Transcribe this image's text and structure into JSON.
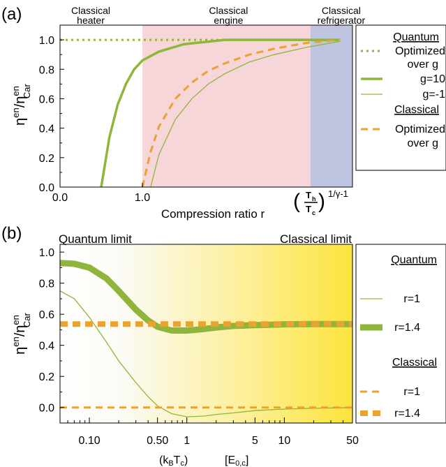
{
  "chart_data": [
    {
      "panel_label": "(a)",
      "type": "line",
      "xlabel": "Compression ratio r",
      "ylabel": {
        "base": "η",
        "sup": "en",
        "mid": "/η",
        "sup2": "en",
        "sub2": "Car"
      },
      "ylim": [
        0.0,
        1.1
      ],
      "yticks": [
        "0.0",
        "0.2",
        "0.4",
        "0.6",
        "0.8",
        "1.0"
      ],
      "xticks": [
        "0.0",
        "1.0"
      ],
      "x_end_label": {
        "frac_num": "T",
        "frac_num_sub": "h",
        "frac_den": "T",
        "frac_den_sub": "c",
        "exponent": "1/γ-1"
      },
      "regions": [
        {
          "label_line1": "Classical",
          "label_line2": "heater",
          "x_range": [
            0.0,
            1.0
          ],
          "color": "#ffffff"
        },
        {
          "label_line1": "Classical",
          "label_line2": "engine",
          "x_range": [
            1.0,
            3.04
          ],
          "color": "#f7d6d9"
        },
        {
          "label_line1": "Classical",
          "label_line2": "refrigerator",
          "x_range": [
            3.04,
            3.55
          ],
          "color": "#bfc5e0"
        }
      ],
      "series": [
        {
          "name": "Optimized over g",
          "group": "Quantum",
          "style": "dotted",
          "color": "#8fb53a",
          "x": [
            0.0,
            3.4
          ],
          "y": [
            1.0,
            1.0
          ]
        },
        {
          "name": "g=10",
          "group": "Quantum",
          "style": "thick",
          "color": "#8fb53a",
          "x": [
            0.5,
            0.6,
            0.7,
            0.8,
            0.9,
            1.0,
            1.2,
            1.5,
            2.0,
            3.4
          ],
          "y": [
            0.0,
            0.34,
            0.56,
            0.7,
            0.8,
            0.86,
            0.92,
            0.97,
            1.0,
            1.0
          ]
        },
        {
          "name": "g=-1",
          "group": "Quantum",
          "style": "thin",
          "color": "#8fb53a",
          "x": [
            1.1,
            1.2,
            1.4,
            1.6,
            1.8,
            2.0,
            2.3,
            2.6,
            3.0,
            3.4
          ],
          "y": [
            0.0,
            0.22,
            0.46,
            0.6,
            0.7,
            0.77,
            0.85,
            0.9,
            0.95,
            0.99
          ]
        },
        {
          "name": "Optimized over g",
          "group": "Classical",
          "style": "dashed",
          "color": "#e8a330",
          "x": [
            1.0,
            1.1,
            1.2,
            1.4,
            1.6,
            1.8,
            2.0,
            2.3,
            2.6,
            3.0,
            3.4
          ],
          "y": [
            0.0,
            0.24,
            0.41,
            0.6,
            0.71,
            0.79,
            0.84,
            0.9,
            0.94,
            0.98,
            1.0
          ]
        }
      ],
      "legend": {
        "placement": "right",
        "entries": [
          {
            "type": "header",
            "text": "Quantum"
          },
          {
            "type": "entry",
            "style": "dotted",
            "color": "#8fb53a",
            "line1": "Optimized",
            "line2": "over g"
          },
          {
            "type": "entry",
            "style": "thick",
            "color": "#8fb53a",
            "line1": "g=10"
          },
          {
            "type": "entry",
            "style": "thin",
            "color": "#8fb53a",
            "line1": "g=-1"
          },
          {
            "type": "header",
            "text": "Classical"
          },
          {
            "type": "entry",
            "style": "dashed",
            "color": "#e8a330",
            "line1": "Optimized",
            "line2": "over g"
          }
        ]
      }
    },
    {
      "panel_label": "(b)",
      "type": "line",
      "xscale": "log",
      "xlabel_parts": {
        "left": "(k",
        "sub": "B",
        "mid": "T",
        "sub2": "c",
        "right": ")",
        "unit": "[E",
        "unit_sub": "0,c",
        "unit_right": "]"
      },
      "ylabel": {
        "base": "η",
        "sup": "en",
        "mid": "/η",
        "sup2": "en",
        "sub2": "Car"
      },
      "ylim": [
        -0.1,
        1.05
      ],
      "xlim": [
        0.05,
        50
      ],
      "yticks": [
        "0.0",
        "0.2",
        "0.4",
        "0.6",
        "0.8",
        "1.0"
      ],
      "xticks": [
        "0.10",
        "0.50",
        "1",
        "5",
        "10",
        "50"
      ],
      "annotations": [
        "Quantum limit",
        "Classical limit"
      ],
      "background": "gradient white to yellow",
      "series": [
        {
          "name": "r=1",
          "group": "Quantum",
          "style": "thin",
          "color": "#8fb53a",
          "x": [
            0.05,
            0.07,
            0.1,
            0.15,
            0.2,
            0.3,
            0.4,
            0.5,
            0.7,
            1,
            1.5,
            2,
            3,
            5,
            10,
            20,
            50
          ],
          "y": [
            0.75,
            0.7,
            0.58,
            0.42,
            0.3,
            0.16,
            0.07,
            0.01,
            -0.04,
            -0.06,
            -0.055,
            -0.045,
            -0.035,
            -0.02,
            -0.01,
            -0.005,
            0.0
          ]
        },
        {
          "name": "r=1.4",
          "group": "Quantum",
          "style": "thick",
          "color": "#8fb53a",
          "x": [
            0.05,
            0.07,
            0.1,
            0.15,
            0.2,
            0.3,
            0.4,
            0.5,
            0.7,
            1,
            1.5,
            2,
            3,
            5,
            10,
            20,
            50
          ],
          "y": [
            0.93,
            0.925,
            0.9,
            0.83,
            0.75,
            0.63,
            0.56,
            0.52,
            0.495,
            0.495,
            0.505,
            0.515,
            0.525,
            0.53,
            0.535,
            0.537,
            0.537
          ]
        },
        {
          "name": "r=1",
          "group": "Classical",
          "style": "dashed",
          "color": "#e8a330",
          "x": [
            0.05,
            50
          ],
          "y": [
            0.0,
            0.0
          ]
        },
        {
          "name": "r=1.4",
          "group": "Classical",
          "style": "thick-dashed",
          "color": "#e8a330",
          "x": [
            0.05,
            50
          ],
          "y": [
            0.537,
            0.537
          ]
        }
      ],
      "legend": {
        "placement": "right",
        "entries": [
          {
            "type": "header",
            "text": "Quantum"
          },
          {
            "type": "entry",
            "style": "thin",
            "color": "#8fb53a",
            "line1": "r=1"
          },
          {
            "type": "entry",
            "style": "thick",
            "color": "#8fb53a",
            "line1": "r=1.4"
          },
          {
            "type": "header",
            "text": "Classical"
          },
          {
            "type": "entry",
            "style": "dashed",
            "color": "#e8a330",
            "line1": "r=1"
          },
          {
            "type": "entry",
            "style": "thick-dashed",
            "color": "#e8a330",
            "line1": "r=1.4"
          }
        ]
      }
    }
  ]
}
